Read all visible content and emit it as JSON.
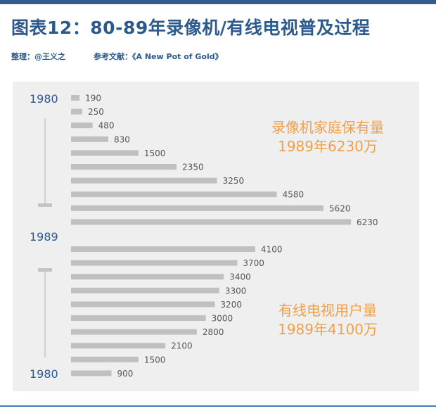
{
  "header": {
    "title": "图表12：80-89年录像机/有线电视普及过程",
    "editor": "整理：@王义之",
    "source": "参考文献：《A New Pot of Gold》"
  },
  "colors": {
    "bar": "#c0c0c0",
    "title": "#2c5a8c",
    "annotation": "#f0a04b",
    "panel": "#efefef"
  },
  "chart_data": {
    "type": "bar",
    "orientation": "horizontal",
    "year_labels": [
      "1980",
      "1989",
      "1980"
    ],
    "series": [
      {
        "values": [
          190,
          250,
          480,
          830,
          1500,
          2350,
          3250,
          4580,
          5620,
          6230
        ],
        "annotation": [
          "录像机家庭保有量",
          "1989年6230万"
        ]
      },
      {
        "values": [
          4100,
          3700,
          3400,
          3300,
          3200,
          3000,
          2800,
          2100,
          1500,
          900
        ],
        "annotation": [
          "有线电视用户量",
          "1989年4100万"
        ]
      }
    ]
  }
}
